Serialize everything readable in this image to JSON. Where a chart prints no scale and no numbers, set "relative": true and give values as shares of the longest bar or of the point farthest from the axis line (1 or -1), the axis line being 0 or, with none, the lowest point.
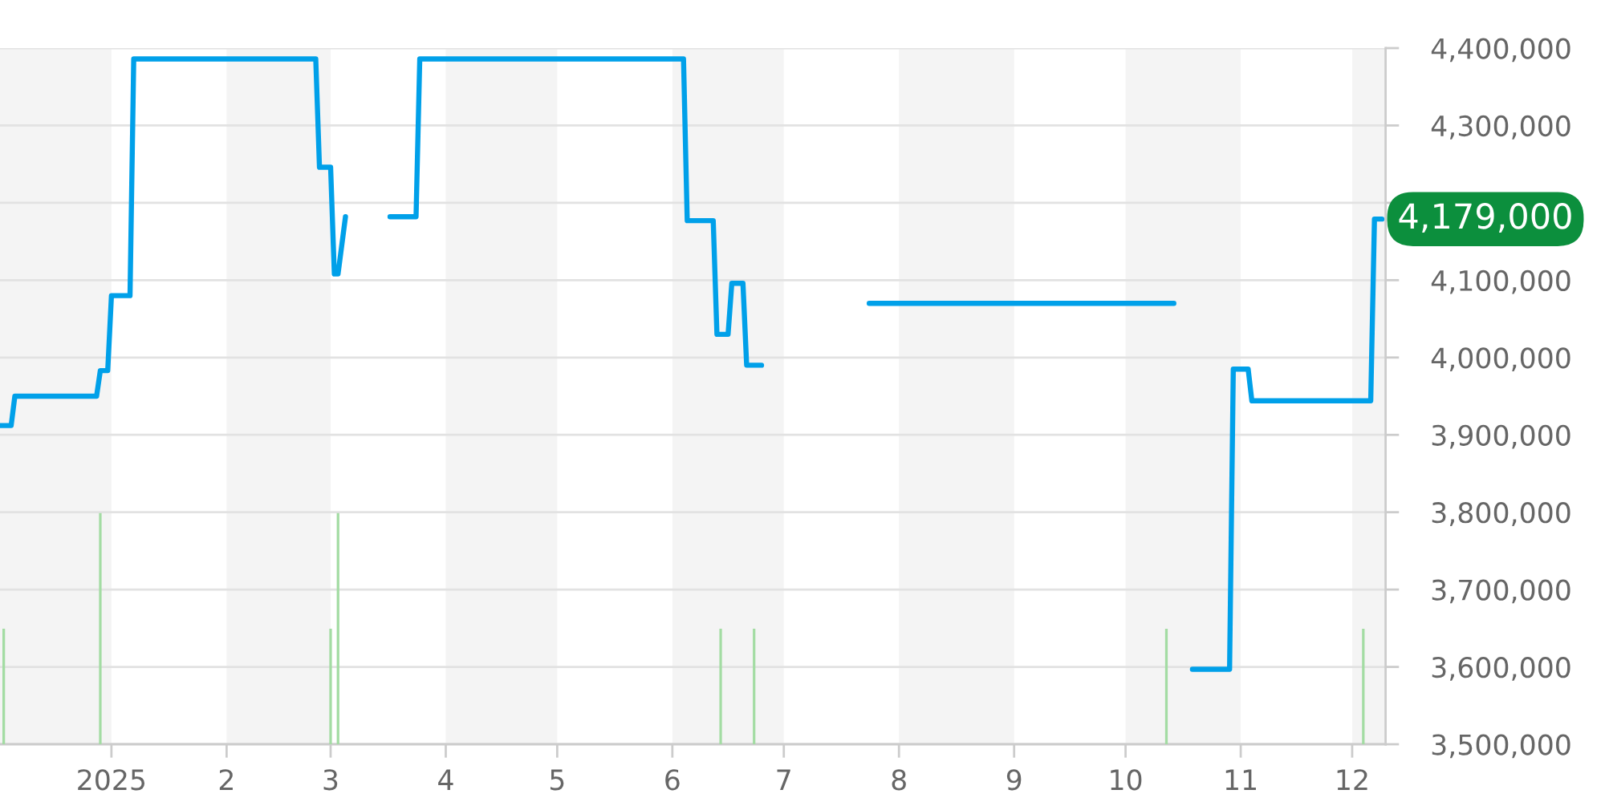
{
  "chart_data": [
    {
      "type": "line",
      "xlim": [
        "2024-12-02",
        "2025-12-10"
      ],
      "xticks": [
        {
          "value": "2025-01-01",
          "label": "2025"
        },
        {
          "value": "2025-02-01",
          "label": "2"
        },
        {
          "value": "2025-03-01",
          "label": "3"
        },
        {
          "value": "2025-04-01",
          "label": "4"
        },
        {
          "value": "2025-05-01",
          "label": "5"
        },
        {
          "value": "2025-06-01",
          "label": "6"
        },
        {
          "value": "2025-07-01",
          "label": "7"
        },
        {
          "value": "2025-08-01",
          "label": "8"
        },
        {
          "value": "2025-09-01",
          "label": "9"
        },
        {
          "value": "2025-10-01",
          "label": "10"
        },
        {
          "value": "2025-11-01",
          "label": "11"
        },
        {
          "value": "2025-12-01",
          "label": "12"
        }
      ],
      "ylim": [
        3500000,
        4400000
      ],
      "yticks": [
        {
          "value": 3500000,
          "label": "3,500,000"
        },
        {
          "value": 3600000,
          "label": "3,600,000"
        },
        {
          "value": 3700000,
          "label": "3,700,000"
        },
        {
          "value": 3800000,
          "label": "3,800,000"
        },
        {
          "value": 3900000,
          "label": "3,900,000"
        },
        {
          "value": 4000000,
          "label": "4,000,000"
        },
        {
          "value": 4100000,
          "label": "4,100,000"
        },
        {
          "value": 4200000,
          "label": null
        },
        {
          "value": 4300000,
          "label": "4,300,000"
        },
        {
          "value": 4400000,
          "label": "4,400,000"
        }
      ],
      "grid": "y",
      "series": [
        {
          "color": "#00a0e9",
          "x": [
            "2024-12-02",
            "2024-12-05",
            "2024-12-06",
            "2024-12-28",
            "2024-12-29",
            "2024-12-31",
            "2025-01-01",
            "2025-01-06",
            "2025-01-07",
            "2025-02-25",
            "2025-02-26",
            "2025-03-01",
            "2025-03-02",
            "2025-03-03",
            "2025-03-05",
            "2025-03-10",
            "2025-03-17",
            "2025-03-24",
            "2025-03-25",
            "2025-06-04",
            "2025-06-05",
            "2025-06-12",
            "2025-06-13",
            "2025-06-16",
            "2025-06-17",
            "2025-06-20",
            "2025-06-21",
            "2025-06-25",
            "2025-07-10",
            "2025-07-24",
            "2025-10-14",
            "2025-10-16",
            "2025-10-19",
            "2025-10-29",
            "2025-10-30",
            "2025-11-03",
            "2025-11-04",
            "2025-12-06",
            "2025-12-07",
            "2025-12-09"
          ],
          "values": [
            3912000,
            3912000,
            3950000,
            3950000,
            3983000,
            3983000,
            4080000,
            4080000,
            4386000,
            4386000,
            4246000,
            4246000,
            4108000,
            4108000,
            4182000,
            null,
            4182000,
            4182000,
            4386000,
            4386000,
            4177000,
            4177000,
            4030000,
            4030000,
            4096000,
            4096000,
            3990000,
            3990000,
            null,
            4070000,
            4070000,
            null,
            3597000,
            3597000,
            3985000,
            3985000,
            3944000,
            3944000,
            4179000,
            4179000
          ]
        }
      ],
      "bands": [
        {
          "axis": "x",
          "from": "2024-12-02",
          "to": "2025-01-01",
          "color": "#f4f4f4"
        },
        {
          "axis": "x",
          "from": "2025-02-01",
          "to": "2025-03-01",
          "color": "#f4f4f4"
        },
        {
          "axis": "x",
          "from": "2025-04-01",
          "to": "2025-05-01",
          "color": "#f4f4f4"
        },
        {
          "axis": "x",
          "from": "2025-06-01",
          "to": "2025-07-01",
          "color": "#f4f4f4"
        },
        {
          "axis": "x",
          "from": "2025-08-01",
          "to": "2025-09-01",
          "color": "#f4f4f4"
        },
        {
          "axis": "x",
          "from": "2025-10-01",
          "to": "2025-11-01",
          "color": "#f4f4f4"
        },
        {
          "axis": "x",
          "from": "2025-12-01",
          "to": "2025-12-10",
          "color": "#f4f4f4"
        }
      ],
      "annotations": [
        {
          "text": "4,179,000",
          "x": "2025-12-09",
          "y": 4179000
        }
      ]
    },
    {
      "type": "bar",
      "relative": true,
      "xlim": [
        "2024-12-02",
        "2025-12-10"
      ],
      "series": [
        {
          "color": "#a3dca3",
          "x": [
            "2024-12-03",
            "2024-12-29",
            "2025-03-01",
            "2025-03-03",
            "2025-06-14",
            "2025-06-23",
            "2025-10-12",
            "2025-12-04"
          ],
          "values": [
            0.5,
            1,
            0.5,
            1,
            0.5,
            0.5,
            0.5,
            0.5
          ]
        }
      ]
    }
  ]
}
